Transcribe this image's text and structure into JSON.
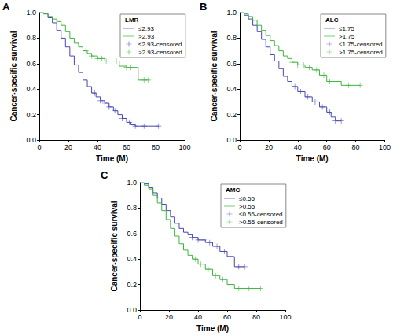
{
  "chart_data": [
    {
      "type": "step",
      "title": "A",
      "legend_title": "LMR",
      "legend": "upper right",
      "grid": false,
      "x_label": "Time (M)",
      "y_label": "Cancer-specific survival",
      "xlim": [
        0,
        100
      ],
      "xticks": [
        0,
        20,
        40,
        60,
        80,
        100
      ],
      "ylim": [
        0,
        1
      ],
      "yticks": [
        {
          "value": 0,
          "label": "0.0"
        },
        0.2,
        0.4,
        0.6,
        0.8,
        {
          "value": 1,
          "label": "1.0"
        }
      ],
      "series": [
        {
          "name": "≤2.93",
          "type": "line",
          "line_style": "solid",
          "color": "#4646b4",
          "x": [
            0,
            3,
            6,
            9,
            12,
            15,
            18,
            21,
            24,
            27,
            30,
            33,
            36,
            39,
            42,
            45,
            48,
            51,
            54,
            57,
            60,
            63,
            66,
            82
          ],
          "values": [
            1.0,
            0.99,
            0.96,
            0.92,
            0.86,
            0.8,
            0.73,
            0.66,
            0.59,
            0.53,
            0.47,
            0.42,
            0.37,
            0.34,
            0.31,
            0.29,
            0.26,
            0.23,
            0.2,
            0.17,
            0.14,
            0.12,
            0.11,
            0.11
          ]
        },
        {
          "name": ">2.93",
          "type": "line",
          "line_style": "solid",
          "color": "#3cb43c",
          "x": [
            0,
            3,
            6,
            9,
            12,
            15,
            18,
            21,
            24,
            27,
            30,
            33,
            36,
            40,
            45,
            50,
            55,
            60,
            68,
            75
          ],
          "values": [
            1.0,
            0.99,
            0.97,
            0.95,
            0.93,
            0.9,
            0.85,
            0.8,
            0.76,
            0.73,
            0.7,
            0.68,
            0.66,
            0.64,
            0.62,
            0.62,
            0.58,
            0.57,
            0.47,
            0.47
          ]
        },
        {
          "name": "≤2.93-censored",
          "type": "scatter",
          "marker": "plus",
          "color": "#4646b4",
          "x": [
            38,
            42,
            45,
            48,
            52,
            57,
            62,
            66,
            72,
            82
          ],
          "values": [
            0.37,
            0.31,
            0.29,
            0.26,
            0.23,
            0.17,
            0.14,
            0.11,
            0.11,
            0.11
          ]
        },
        {
          "name": ">2.93-censored",
          "type": "scatter",
          "marker": "plus",
          "color": "#3cb43c",
          "x": [
            32,
            36,
            40,
            43,
            46,
            50,
            53,
            60,
            63,
            72,
            75
          ],
          "values": [
            0.7,
            0.66,
            0.64,
            0.64,
            0.62,
            0.62,
            0.62,
            0.57,
            0.57,
            0.47,
            0.47
          ]
        }
      ]
    },
    {
      "type": "step",
      "title": "B",
      "legend_title": "ALC",
      "legend": "upper right",
      "grid": false,
      "x_label": "Time (M)",
      "y_label": "Cancer-specific survival",
      "xlim": [
        0,
        100
      ],
      "xticks": [
        0,
        20,
        40,
        60,
        80,
        100
      ],
      "ylim": [
        0,
        1
      ],
      "yticks": [
        {
          "value": 0,
          "label": "0.0"
        },
        0.2,
        0.4,
        0.6,
        0.8,
        {
          "value": 1,
          "label": "1.0"
        }
      ],
      "series": [
        {
          "name": "≤1.75",
          "type": "line",
          "line_style": "solid",
          "color": "#4646b4",
          "x": [
            0,
            3,
            6,
            9,
            12,
            15,
            18,
            21,
            24,
            27,
            30,
            33,
            36,
            40,
            45,
            50,
            55,
            60,
            63,
            66,
            70
          ],
          "values": [
            1.0,
            0.98,
            0.95,
            0.9,
            0.85,
            0.79,
            0.73,
            0.67,
            0.62,
            0.56,
            0.5,
            0.46,
            0.42,
            0.38,
            0.34,
            0.3,
            0.26,
            0.22,
            0.18,
            0.15,
            0.15
          ]
        },
        {
          "name": ">1.75",
          "type": "line",
          "line_style": "solid",
          "color": "#3cb43c",
          "x": [
            0,
            3,
            6,
            9,
            12,
            15,
            18,
            21,
            24,
            27,
            30,
            33,
            36,
            40,
            45,
            50,
            55,
            60,
            70,
            83
          ],
          "values": [
            1.0,
            0.99,
            0.97,
            0.94,
            0.9,
            0.86,
            0.82,
            0.78,
            0.74,
            0.7,
            0.66,
            0.64,
            0.61,
            0.59,
            0.57,
            0.55,
            0.51,
            0.46,
            0.43,
            0.43
          ]
        },
        {
          "name": "≤1.75-censored",
          "type": "scatter",
          "marker": "plus",
          "color": "#4646b4",
          "x": [
            38,
            42,
            47,
            52,
            57,
            62,
            66,
            70
          ],
          "values": [
            0.42,
            0.38,
            0.34,
            0.3,
            0.26,
            0.22,
            0.15,
            0.15
          ]
        },
        {
          "name": ">1.75-censored",
          "type": "scatter",
          "marker": "plus",
          "color": "#3cb43c",
          "x": [
            36,
            40,
            44,
            48,
            53,
            58,
            62,
            75,
            83
          ],
          "values": [
            0.61,
            0.59,
            0.59,
            0.57,
            0.55,
            0.51,
            0.46,
            0.43,
            0.43
          ]
        }
      ]
    },
    {
      "type": "step",
      "title": "C",
      "legend_title": "AMC",
      "legend": "upper right",
      "grid": false,
      "x_label": "Time (M)",
      "y_label": "Cancer-specific survival",
      "xlim": [
        0,
        100
      ],
      "xticks": [
        0,
        20,
        40,
        60,
        80,
        100
      ],
      "ylim": [
        0,
        1
      ],
      "yticks": [
        {
          "value": 0,
          "label": "0.0"
        },
        0.2,
        0.4,
        0.6,
        0.8,
        {
          "value": 1,
          "label": "1.0"
        }
      ],
      "series": [
        {
          "name": "≤0.55",
          "type": "line",
          "line_style": "solid",
          "color": "#4646b4",
          "x": [
            0,
            3,
            6,
            9,
            12,
            15,
            18,
            21,
            24,
            27,
            30,
            33,
            36,
            40,
            45,
            50,
            55,
            60,
            65,
            72
          ],
          "values": [
            1.0,
            0.99,
            0.96,
            0.92,
            0.88,
            0.83,
            0.78,
            0.73,
            0.68,
            0.64,
            0.61,
            0.59,
            0.57,
            0.55,
            0.53,
            0.5,
            0.46,
            0.42,
            0.34,
            0.34
          ]
        },
        {
          "name": ">0.55",
          "type": "line",
          "line_style": "solid",
          "color": "#3cb43c",
          "x": [
            0,
            3,
            6,
            9,
            12,
            15,
            18,
            21,
            24,
            27,
            30,
            33,
            36,
            40,
            45,
            50,
            55,
            60,
            65,
            83
          ],
          "values": [
            1.0,
            0.98,
            0.95,
            0.9,
            0.84,
            0.78,
            0.71,
            0.64,
            0.58,
            0.52,
            0.47,
            0.43,
            0.4,
            0.36,
            0.32,
            0.27,
            0.24,
            0.2,
            0.17,
            0.17
          ]
        },
        {
          "name": "≤0.55-censored",
          "type": "scatter",
          "marker": "plus",
          "color": "#4646b4",
          "x": [
            36,
            40,
            44,
            48,
            53,
            58,
            62,
            68,
            72
          ],
          "values": [
            0.57,
            0.55,
            0.55,
            0.53,
            0.5,
            0.46,
            0.42,
            0.34,
            0.34
          ]
        },
        {
          "name": ">0.55-censored",
          "type": "scatter",
          "marker": "plus",
          "color": "#3cb43c",
          "x": [
            38,
            42,
            47,
            52,
            57,
            62,
            68,
            75,
            83
          ],
          "values": [
            0.4,
            0.36,
            0.32,
            0.27,
            0.24,
            0.2,
            0.17,
            0.17,
            0.17
          ]
        }
      ]
    }
  ]
}
